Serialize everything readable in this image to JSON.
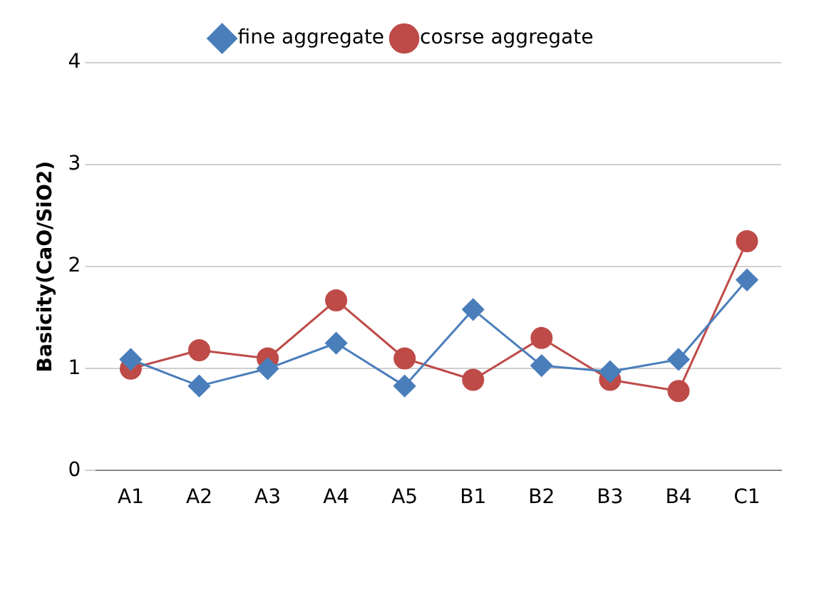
{
  "chart_data": {
    "type": "line",
    "ylabel": "Basicity(CaO/SiO2)",
    "categories": [
      "A1",
      "A2",
      "A3",
      "A4",
      "A5",
      "B1",
      "B2",
      "B3",
      "B4",
      "C1"
    ],
    "series": [
      {
        "name": "fine aggregate",
        "color": "#4a7ebb",
        "marker": "diamond",
        "values": [
          1.09,
          0.83,
          1.0,
          1.25,
          0.83,
          1.58,
          1.03,
          0.97,
          1.09,
          1.87
        ]
      },
      {
        "name": "cosrse aggregate",
        "color": "#be4b48",
        "marker": "circle",
        "values": [
          1.0,
          1.18,
          1.1,
          1.67,
          1.1,
          0.89,
          1.3,
          0.89,
          0.78,
          2.25
        ]
      }
    ],
    "ylim": [
      0,
      4
    ],
    "yticks": [
      0,
      1,
      2,
      3,
      4
    ],
    "grid": "y",
    "legend": "top"
  }
}
